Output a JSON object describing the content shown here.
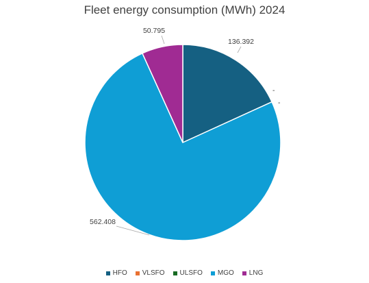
{
  "chart_data": {
    "type": "pie",
    "title": "Fleet energy consumption (MWh) 2024",
    "categories": [
      "HFO",
      "VLSFO",
      "ULSFO",
      "MGO",
      "LNG"
    ],
    "values": [
      136.392,
      0,
      0,
      562.408,
      50.795
    ],
    "value_labels": [
      "136.392",
      "-",
      "-",
      "562.408",
      "50.795"
    ],
    "colors": [
      "#156082",
      "#e97132",
      "#196b24",
      "#0f9ed5",
      "#a02b93"
    ],
    "legend_position": "bottom",
    "start_angle_deg": 0,
    "direction": "clockwise"
  }
}
